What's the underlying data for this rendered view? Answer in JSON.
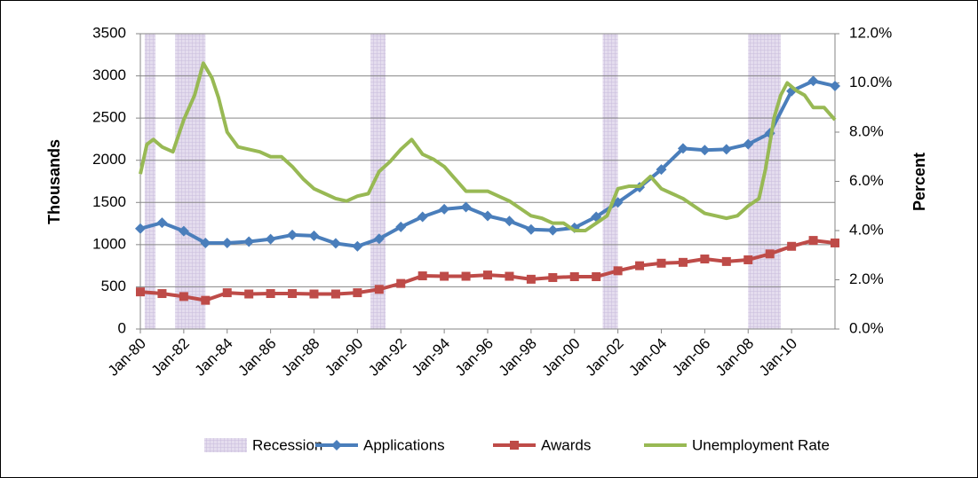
{
  "chart_data": {
    "type": "line",
    "x": [
      1980,
      1981,
      1982,
      1983,
      1984,
      1985,
      1986,
      1987,
      1988,
      1989,
      1990,
      1991,
      1992,
      1993,
      1994,
      1995,
      1996,
      1997,
      1998,
      1999,
      2000,
      2001,
      2002,
      2003,
      2004,
      2005,
      2006,
      2007,
      2008,
      2009,
      2010,
      2011,
      2012
    ],
    "xlim": [
      1980,
      2012
    ],
    "xticks": [
      {
        "value": 1980,
        "label": "Jan-80"
      },
      {
        "value": 1982,
        "label": "Jan-82"
      },
      {
        "value": 1984,
        "label": "Jan-84"
      },
      {
        "value": 1986,
        "label": "Jan-86"
      },
      {
        "value": 1988,
        "label": "Jan-88"
      },
      {
        "value": 1990,
        "label": "Jan-90"
      },
      {
        "value": 1992,
        "label": "Jan-92"
      },
      {
        "value": 1994,
        "label": "Jan-94"
      },
      {
        "value": 1996,
        "label": "Jan-96"
      },
      {
        "value": 1998,
        "label": "Jan-98"
      },
      {
        "value": 2000,
        "label": "Jan-00"
      },
      {
        "value": 2002,
        "label": "Jan-02"
      },
      {
        "value": 2004,
        "label": "Jan-04"
      },
      {
        "value": 2006,
        "label": "Jan-06"
      },
      {
        "value": 2008,
        "label": "Jan-08"
      },
      {
        "value": 2010,
        "label": "Jan-10"
      }
    ],
    "ylabel": "Thousands",
    "ylim": [
      0,
      3500
    ],
    "yticks": [
      0,
      500,
      1000,
      1500,
      2000,
      2500,
      3000,
      3500
    ],
    "y2label": "Percent",
    "y2lim": [
      0,
      12
    ],
    "y2ticks": [
      {
        "value": 0,
        "label": "0.0%"
      },
      {
        "value": 2,
        "label": "2.0%"
      },
      {
        "value": 4,
        "label": "4.0%"
      },
      {
        "value": 6,
        "label": "6.0%"
      },
      {
        "value": 8,
        "label": "8.0%"
      },
      {
        "value": 10,
        "label": "10.0%"
      },
      {
        "value": 12,
        "label": "12.0%"
      }
    ],
    "grid": true,
    "legend": "bottom",
    "series": [
      {
        "name": "Recession",
        "color": "#d9cfe6",
        "ranges": [
          [
            1980.2,
            1980.7
          ],
          [
            1981.6,
            1983.0
          ],
          [
            1990.6,
            1991.3
          ],
          [
            2001.3,
            2002.0
          ],
          [
            2008.0,
            2009.5
          ]
        ]
      },
      {
        "name": "Applications",
        "color": "#4a7ebb",
        "marker": "diamond",
        "values": [
          1190,
          1260,
          1160,
          1020,
          1020,
          1035,
          1065,
          1115,
          1105,
          1015,
          980,
          1070,
          1210,
          1330,
          1420,
          1445,
          1340,
          1280,
          1180,
          1170,
          1200,
          1330,
          1500,
          1680,
          1890,
          2140,
          2120,
          2130,
          2190,
          2320,
          2820,
          2940,
          2880
        ]
      },
      {
        "name": "Awards",
        "color": "#be4b48",
        "marker": "square",
        "values": [
          440,
          420,
          385,
          340,
          430,
          415,
          420,
          420,
          415,
          415,
          430,
          470,
          540,
          630,
          625,
          625,
          640,
          625,
          590,
          610,
          620,
          620,
          690,
          750,
          780,
          790,
          830,
          800,
          820,
          890,
          980,
          1050,
          1020
        ]
      },
      {
        "name": "Unemployment Rate",
        "color": "#98b954",
        "axis": "y2",
        "x": [
          1980.0,
          1980.3,
          1980.6,
          1981.0,
          1981.5,
          1982.0,
          1982.5,
          1982.9,
          1983.3,
          1983.6,
          1984.0,
          1984.5,
          1985.0,
          1985.5,
          1986.0,
          1986.5,
          1987.0,
          1987.5,
          1988.0,
          1988.5,
          1989.0,
          1989.5,
          1990.0,
          1990.5,
          1991.0,
          1991.5,
          1992.0,
          1992.5,
          1993.0,
          1993.5,
          1994.0,
          1994.5,
          1995.0,
          1995.5,
          1996.0,
          1996.5,
          1997.0,
          1997.5,
          1998.0,
          1998.5,
          1999.0,
          1999.5,
          2000.0,
          2000.5,
          2001.0,
          2001.5,
          2002.0,
          2002.5,
          2003.0,
          2003.5,
          2004.0,
          2004.5,
          2005.0,
          2005.5,
          2006.0,
          2006.5,
          2007.0,
          2007.5,
          2008.0,
          2008.5,
          2008.8,
          2009.2,
          2009.5,
          2009.8,
          2010.2,
          2010.6,
          2011.0,
          2011.5,
          2012.0
        ],
        "values": [
          6.3,
          7.5,
          7.7,
          7.4,
          7.2,
          8.5,
          9.5,
          10.8,
          10.2,
          9.4,
          8.0,
          7.4,
          7.3,
          7.2,
          7.0,
          7.0,
          6.6,
          6.1,
          5.7,
          5.5,
          5.3,
          5.2,
          5.4,
          5.5,
          6.4,
          6.8,
          7.3,
          7.7,
          7.1,
          6.9,
          6.6,
          6.1,
          5.6,
          5.6,
          5.6,
          5.4,
          5.2,
          4.9,
          4.6,
          4.5,
          4.3,
          4.3,
          4.0,
          4.0,
          4.3,
          4.6,
          5.7,
          5.8,
          5.8,
          6.2,
          5.7,
          5.5,
          5.3,
          5.0,
          4.7,
          4.6,
          4.5,
          4.6,
          5.0,
          5.3,
          6.5,
          8.6,
          9.5,
          10.0,
          9.7,
          9.5,
          9.0,
          9.0,
          8.5
        ]
      }
    ]
  }
}
